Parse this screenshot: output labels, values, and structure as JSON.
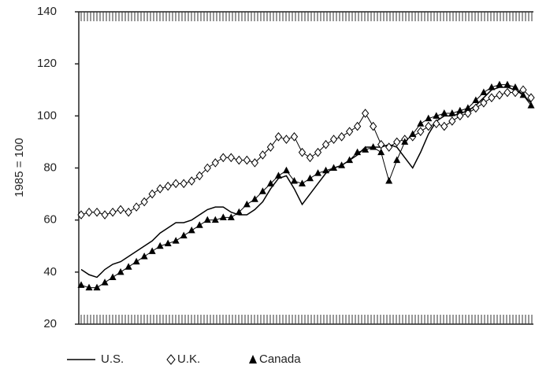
{
  "chart_data": {
    "type": "line",
    "y_label": "1985 = 100",
    "ylim": [
      20,
      140
    ],
    "yticks": [
      20,
      40,
      60,
      80,
      100,
      120,
      140
    ],
    "series": [
      {
        "name": "U.S.",
        "color": "#000000",
        "marker": "none",
        "values": [
          41,
          39,
          38,
          41,
          43,
          44,
          46,
          48,
          50,
          52,
          55,
          57,
          59,
          59,
          60,
          62,
          64,
          65,
          65,
          63,
          62,
          62,
          64,
          67,
          72,
          76,
          77,
          72,
          66,
          70,
          74,
          78,
          80,
          81,
          83,
          85,
          88,
          88,
          88,
          89,
          88,
          84,
          80,
          86,
          93,
          98,
          100,
          100,
          101,
          102,
          104,
          107,
          110,
          111,
          111,
          110,
          108,
          105
        ]
      },
      {
        "name": "U.K.",
        "color": "#000000",
        "marker": "diamond",
        "values": [
          62,
          63,
          63,
          62,
          63,
          64,
          63,
          65,
          67,
          70,
          72,
          73,
          74,
          74,
          75,
          77,
          80,
          82,
          84,
          84,
          83,
          83,
          82,
          85,
          88,
          92,
          91,
          92,
          86,
          84,
          86,
          89,
          91,
          92,
          94,
          96,
          101,
          96,
          89,
          88,
          90,
          91,
          92,
          94,
          96,
          97,
          96,
          98,
          100,
          101,
          103,
          105,
          107,
          108,
          109,
          109,
          110,
          107
        ]
      },
      {
        "name": "Canada",
        "color": "#000000",
        "marker": "triangle",
        "values": [
          35,
          34,
          34,
          36,
          38,
          40,
          42,
          44,
          46,
          48,
          50,
          51,
          52,
          54,
          56,
          58,
          60,
          60,
          61,
          61,
          63,
          66,
          68,
          71,
          74,
          77,
          79,
          75,
          74,
          76,
          78,
          79,
          80,
          81,
          83,
          86,
          87,
          88,
          86,
          75,
          83,
          90,
          93,
          97,
          99,
          100,
          101,
          101,
          102,
          103,
          106,
          109,
          111,
          112,
          112,
          111,
          108,
          104
        ]
      }
    ]
  }
}
